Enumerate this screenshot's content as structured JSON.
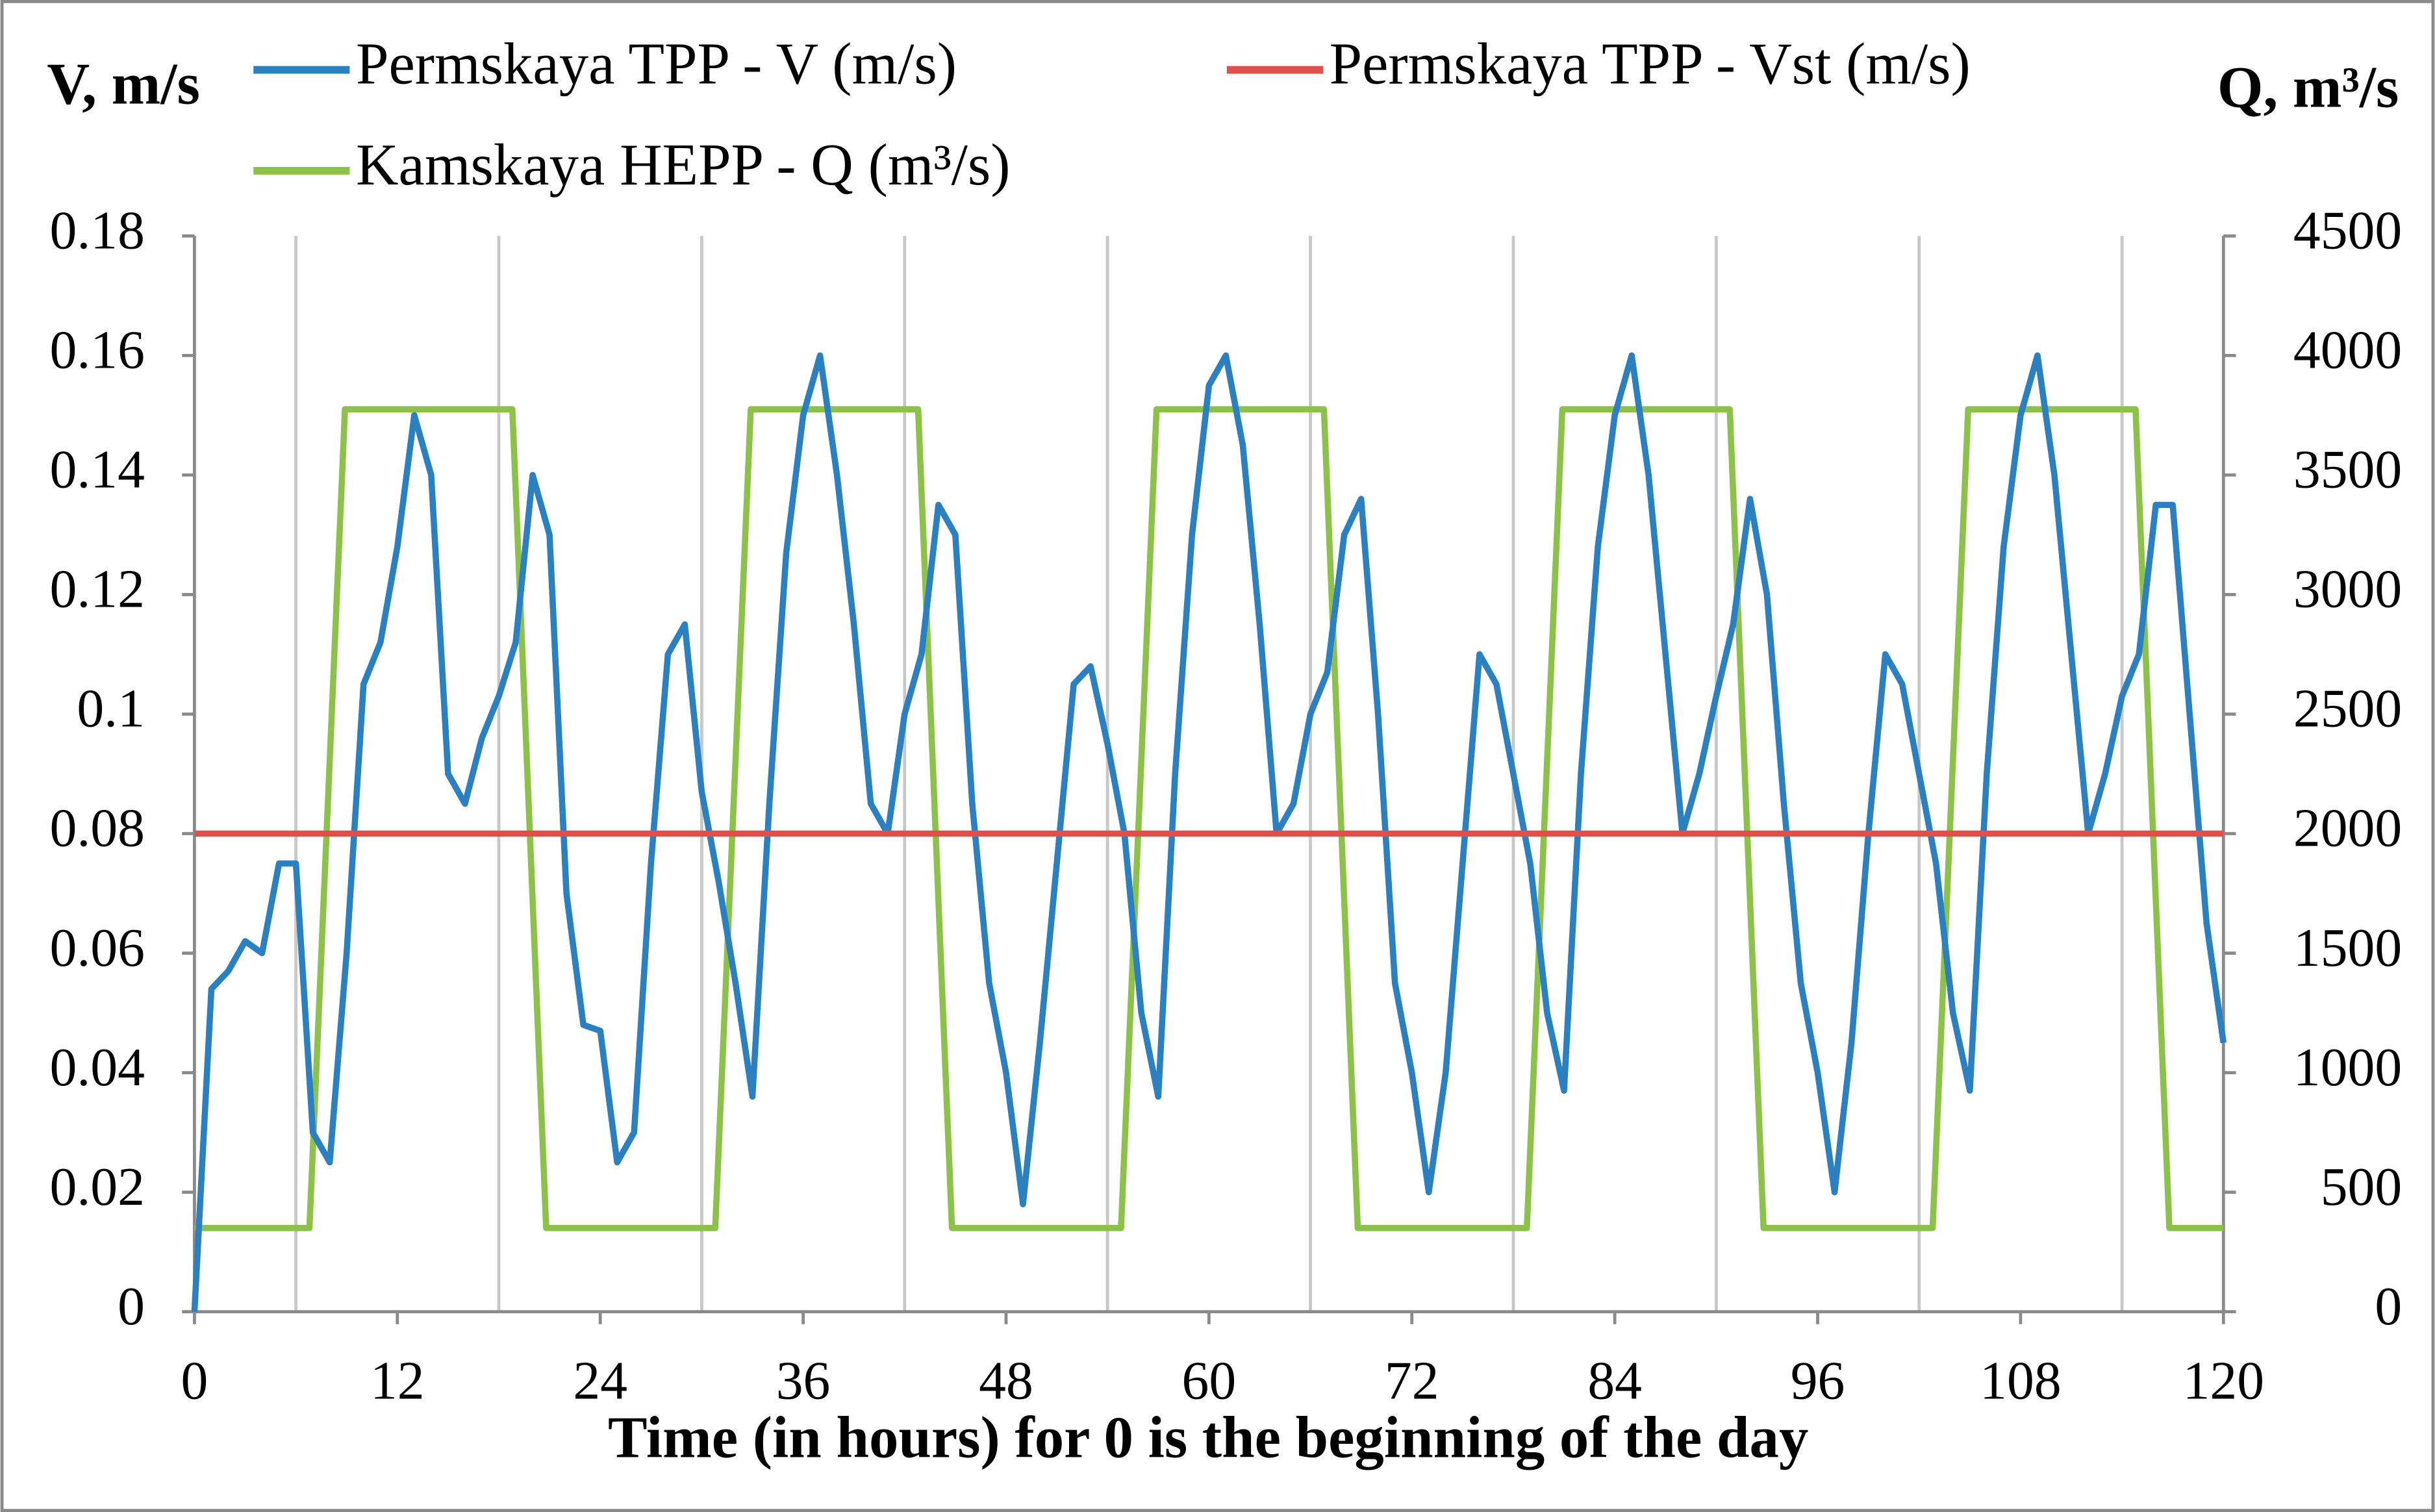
{
  "chart_data": {
    "type": "line",
    "x_label": "Time (in hours) for 0 is the beginning of the day",
    "y_label": "V, m/s",
    "y2_label": "Q, m³/s",
    "xlim": [
      0,
      120
    ],
    "xticks": [
      0,
      12,
      24,
      36,
      48,
      60,
      72,
      84,
      96,
      108,
      120
    ],
    "ylim": [
      0,
      0.18
    ],
    "yticks": [
      0,
      0.02,
      0.04,
      0.06,
      0.08,
      0.1,
      0.12,
      0.14,
      0.16,
      0.18
    ],
    "y2lim": [
      0,
      4500
    ],
    "y2ticks": [
      0,
      500,
      1000,
      1500,
      2000,
      2500,
      3000,
      3500,
      4000,
      4500
    ],
    "series": [
      {
        "name": "Permskaya TPP - V (m/s)",
        "color": "#2a80c0",
        "x": [
          0,
          1,
          2,
          3,
          4,
          5,
          6,
          7,
          8,
          9,
          10,
          11,
          12,
          13,
          14,
          15,
          16,
          17,
          18,
          19,
          20,
          21,
          22,
          23,
          24,
          25,
          26,
          27,
          28,
          29,
          30,
          31,
          32,
          33,
          34,
          35,
          36,
          37,
          38,
          39,
          40,
          41,
          42,
          43,
          44,
          45,
          46,
          47,
          48,
          49,
          50,
          51,
          52,
          53,
          54,
          55,
          56,
          57,
          58,
          59,
          60,
          61,
          62,
          63,
          64,
          65,
          66,
          67,
          68,
          69,
          70,
          71,
          72,
          73,
          74,
          75,
          76,
          77,
          78,
          79,
          80,
          81,
          82,
          83,
          84,
          85,
          86,
          87,
          88,
          89,
          90,
          91,
          92,
          93,
          94,
          95,
          96,
          97,
          98,
          99,
          100,
          101,
          102,
          103,
          104,
          105,
          106,
          107,
          108,
          109,
          110,
          111,
          112,
          113,
          114,
          115,
          116,
          117,
          118,
          119,
          120
        ],
        "values": [
          0,
          0.054,
          0.057,
          0.062,
          0.06,
          0.075,
          0.075,
          0.03,
          0.025,
          0.06,
          0.105,
          0.112,
          0.128,
          0.15,
          0.14,
          0.09,
          0.085,
          0.096,
          0.103,
          0.112,
          0.14,
          0.13,
          0.07,
          0.048,
          0.047,
          0.025,
          0.03,
          0.075,
          0.11,
          0.115,
          0.087,
          0.072,
          0.055,
          0.036,
          0.085,
          0.127,
          0.15,
          0.16,
          0.14,
          0.115,
          0.085,
          0.08,
          0.1,
          0.11,
          0.135,
          0.13,
          0.085,
          0.055,
          0.04,
          0.018,
          0.045,
          0.075,
          0.105,
          0.108,
          0.095,
          0.08,
          0.05,
          0.036,
          0.09,
          0.13,
          0.155,
          0.16,
          0.145,
          0.115,
          0.08,
          0.085,
          0.1,
          0.107,
          0.13,
          0.136,
          0.1,
          0.055,
          0.04,
          0.02,
          0.04,
          0.075,
          0.11,
          0.105,
          0.09,
          0.075,
          0.05,
          0.037,
          0.09,
          0.128,
          0.15,
          0.16,
          0.14,
          0.11,
          0.08,
          0.09,
          0.103,
          0.115,
          0.136,
          0.12,
          0.085,
          0.055,
          0.04,
          0.02,
          0.045,
          0.08,
          0.11,
          0.105,
          0.09,
          0.075,
          0.05,
          0.037,
          0.09,
          0.128,
          0.15,
          0.16,
          0.14,
          0.11,
          0.08,
          0.09,
          0.103,
          0.11,
          0.135,
          0.135,
          0.1,
          0.065,
          0.045
        ]
      },
      {
        "name": "Permskaya TPP - Vst (m/s)",
        "color": "#e04f4a",
        "x": [
          0,
          120
        ],
        "values": [
          0.08,
          0.08
        ]
      },
      {
        "name": "Kamskaya HEPP - Q (m³/s)",
        "color": "#8cc24a",
        "axis": "y2",
        "x": [
          0,
          6.8,
          8.9,
          18.8,
          20.8,
          30.8,
          32.9,
          42.8,
          44.8,
          54.8,
          56.9,
          66.8,
          68.8,
          78.8,
          80.9,
          90.8,
          92.8,
          102.8,
          104.9,
          114.8,
          116.8,
          120
        ],
        "values": [
          350,
          350,
          3775,
          3775,
          350,
          350,
          3775,
          3775,
          350,
          350,
          3775,
          3775,
          350,
          350,
          3775,
          3775,
          350,
          350,
          3775,
          3775,
          350,
          350
        ]
      }
    ]
  }
}
